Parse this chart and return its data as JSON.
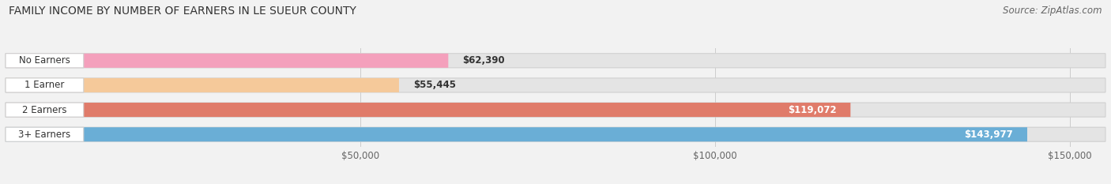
{
  "title": "FAMILY INCOME BY NUMBER OF EARNERS IN LE SUEUR COUNTY",
  "source": "Source: ZipAtlas.com",
  "categories": [
    "No Earners",
    "1 Earner",
    "2 Earners",
    "3+ Earners"
  ],
  "values": [
    62390,
    55445,
    119072,
    143977
  ],
  "bar_colors": [
    "#f4a0bc",
    "#f5c99a",
    "#e07b6a",
    "#6aaed6"
  ],
  "label_bg_colors": [
    "#f9ccd9",
    "#f9ddb8",
    "#e07b6a",
    "#6aaed6"
  ],
  "background_color": "#f2f2f2",
  "bar_bg_color": "#e4e4e4",
  "xlim_max": 155000,
  "xticks": [
    50000,
    100000,
    150000
  ],
  "xtick_labels": [
    "$50,000",
    "$100,000",
    "$150,000"
  ],
  "title_fontsize": 10,
  "source_fontsize": 8.5,
  "bar_height": 0.58,
  "label_inside_colors": [
    "#333333",
    "#333333",
    "#ffffff",
    "#ffffff"
  ],
  "value_inside_colors": [
    "#333333",
    "#333333",
    "#ffffff",
    "#ffffff"
  ],
  "figsize": [
    14.06,
    2.33
  ],
  "dpi": 100
}
